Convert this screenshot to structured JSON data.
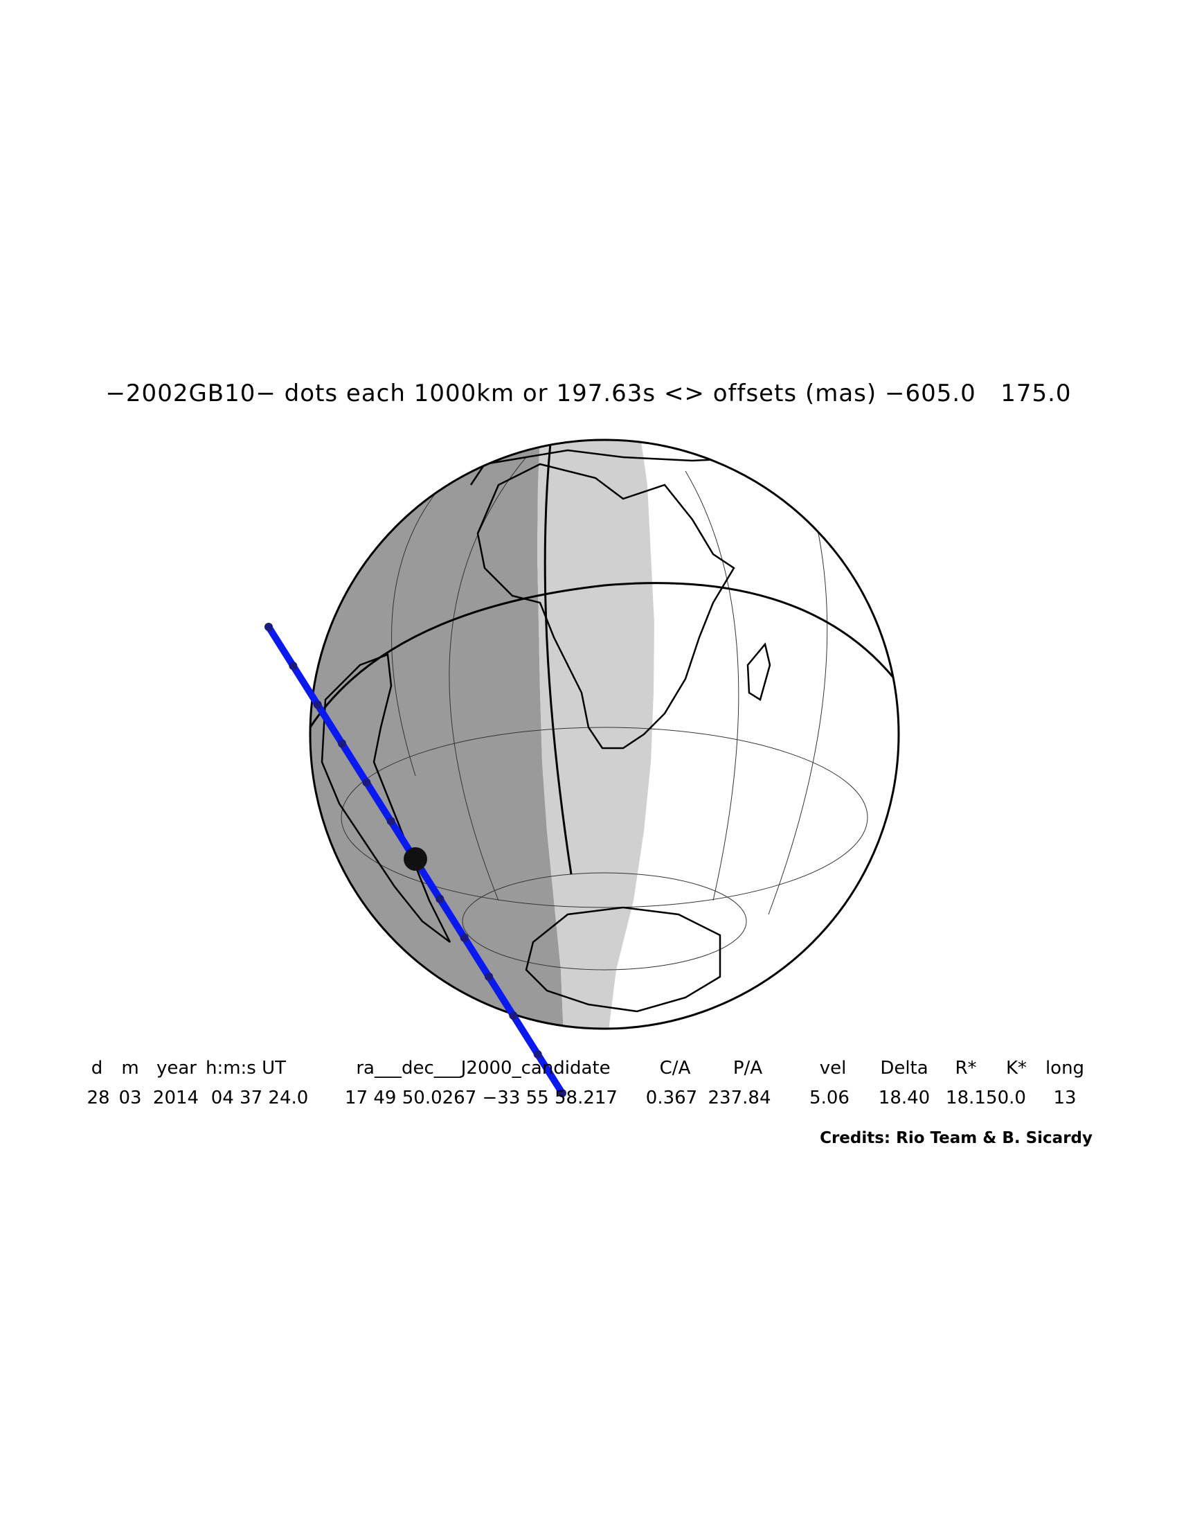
{
  "title": "−2002GB10− dots each 1000km or 197.63s <> offsets (mas) −605.0   175.0",
  "table": {
    "headers": [
      "d",
      "m",
      "year",
      "h:m:s UT",
      "ra___dec___J2000_candidate",
      "C/A",
      "P/A",
      "vel",
      "Delta",
      "R*",
      "K*",
      "long"
    ],
    "values": [
      "28",
      "03",
      "2014",
      "04 37 24.0",
      "17 49 50.0267 −33 55 58.217",
      "0.367",
      "237.84",
      "5.06",
      "18.40",
      "18.1",
      "50.0",
      "13"
    ]
  },
  "credits": "Credits: Rio Team & B. Sicardy",
  "colors": {
    "night": "#9a9a9a",
    "twilight": "#d0d0d0",
    "day": "#ffffff",
    "track": "#0a1aee",
    "outline": "#000000"
  },
  "icons": [
    "earth-globe",
    "occultation-track",
    "track-dots",
    "closest-approach-disk"
  ]
}
